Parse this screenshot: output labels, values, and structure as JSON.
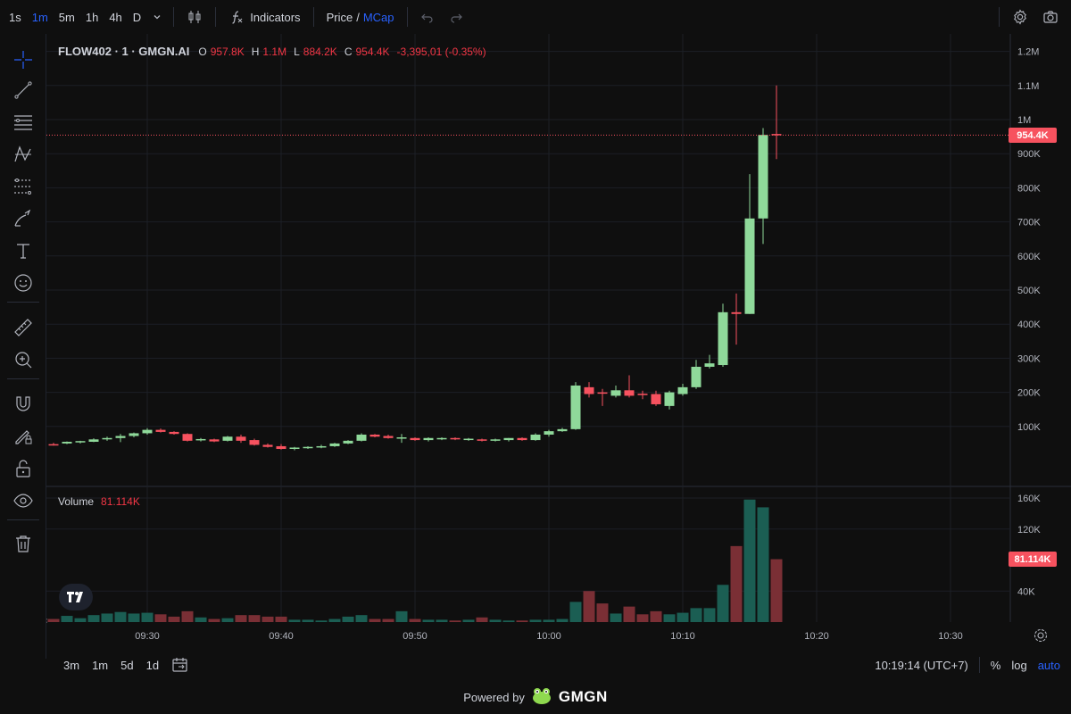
{
  "toolbar": {
    "timeframes": [
      "1s",
      "1m",
      "5m",
      "1h",
      "4h",
      "D"
    ],
    "active_timeframe": "1m",
    "indicators_label": "Indicators",
    "price_label": "Price",
    "separator": "/",
    "mcap_label": "MCap"
  },
  "legend": {
    "symbol": "FLOW402 · 1 · GMGN.AI",
    "open_key": "O",
    "open": "957.8K",
    "high_key": "H",
    "high": "1.1M",
    "low_key": "L",
    "low": "884.2K",
    "close_key": "C",
    "close": "954.4K",
    "change": "-3,395,01 (-0.35%)"
  },
  "volume_legend": {
    "label": "Volume",
    "value": "81.114K"
  },
  "price_axis": [
    "1.2M",
    "1.1M",
    "1M",
    "900K",
    "800K",
    "700K",
    "600K",
    "500K",
    "400K",
    "300K",
    "200K",
    "100K"
  ],
  "price_axis_values": [
    1200000,
    1100000,
    1000000,
    900000,
    800000,
    700000,
    600000,
    500000,
    400000,
    300000,
    200000,
    100000
  ],
  "volume_axis": [
    "160K",
    "120K",
    "40K"
  ],
  "volume_axis_values": [
    160000,
    120000,
    40000
  ],
  "current_price_tag": "954.4K",
  "current_volume_tag": "81.114K",
  "time_axis": [
    "09:30",
    "09:40",
    "09:50",
    "10:00",
    "10:10",
    "10:20",
    "10:30"
  ],
  "bottombar": {
    "ranges": [
      "3m",
      "1m",
      "5d",
      "1d"
    ],
    "clock": "10:19:14 (UTC+7)",
    "percent_label": "%",
    "log_label": "log",
    "auto_label": "auto"
  },
  "footer": {
    "powered_by": "Powered by",
    "brand": "GMGN"
  },
  "colors": {
    "up": "#8fd99a",
    "down": "#f7525f",
    "vol_up": "#1b5e53",
    "vol_down": "#7a2f35",
    "accent": "#2962ff"
  },
  "chart_data": {
    "type": "candlestick",
    "x_label_times": [
      "09:30",
      "09:40",
      "09:50",
      "10:00",
      "10:10",
      "10:20",
      "10:30"
    ],
    "candles": [
      {
        "o": 48000,
        "h": 52000,
        "l": 44000,
        "c": 46000,
        "v": 4000,
        "up": false
      },
      {
        "o": 50000,
        "h": 56000,
        "l": 48000,
        "c": 55000,
        "v": 8000,
        "up": true
      },
      {
        "o": 54000,
        "h": 58000,
        "l": 50000,
        "c": 57000,
        "v": 5000,
        "up": true
      },
      {
        "o": 55000,
        "h": 65000,
        "l": 54000,
        "c": 62000,
        "v": 9000,
        "up": true
      },
      {
        "o": 62000,
        "h": 70000,
        "l": 58000,
        "c": 66000,
        "v": 11000,
        "up": true
      },
      {
        "o": 66000,
        "h": 78000,
        "l": 54000,
        "c": 72000,
        "v": 13000,
        "up": true
      },
      {
        "o": 72000,
        "h": 82000,
        "l": 68000,
        "c": 80000,
        "v": 11000,
        "up": true
      },
      {
        "o": 80000,
        "h": 95000,
        "l": 76000,
        "c": 90000,
        "v": 12000,
        "up": true
      },
      {
        "o": 90000,
        "h": 94000,
        "l": 82000,
        "c": 84000,
        "v": 10000,
        "up": false
      },
      {
        "o": 84000,
        "h": 86000,
        "l": 76000,
        "c": 78000,
        "v": 7000,
        "up": false
      },
      {
        "o": 78000,
        "h": 80000,
        "l": 56000,
        "c": 58000,
        "v": 14000,
        "up": false
      },
      {
        "o": 60000,
        "h": 66000,
        "l": 56000,
        "c": 63000,
        "v": 6000,
        "up": true
      },
      {
        "o": 62000,
        "h": 64000,
        "l": 54000,
        "c": 56000,
        "v": 4000,
        "up": false
      },
      {
        "o": 58000,
        "h": 72000,
        "l": 56000,
        "c": 70000,
        "v": 5000,
        "up": true
      },
      {
        "o": 70000,
        "h": 76000,
        "l": 52000,
        "c": 58000,
        "v": 9000,
        "up": false
      },
      {
        "o": 60000,
        "h": 64000,
        "l": 44000,
        "c": 46000,
        "v": 9000,
        "up": false
      },
      {
        "o": 46000,
        "h": 50000,
        "l": 38000,
        "c": 40000,
        "v": 7000,
        "up": false
      },
      {
        "o": 42000,
        "h": 48000,
        "l": 32000,
        "c": 34000,
        "v": 7000,
        "up": false
      },
      {
        "o": 36000,
        "h": 40000,
        "l": 30000,
        "c": 38000,
        "v": 3000,
        "up": true
      },
      {
        "o": 38000,
        "h": 42000,
        "l": 34000,
        "c": 40000,
        "v": 3000,
        "up": true
      },
      {
        "o": 40000,
        "h": 46000,
        "l": 36000,
        "c": 42000,
        "v": 2000,
        "up": true
      },
      {
        "o": 42000,
        "h": 52000,
        "l": 40000,
        "c": 50000,
        "v": 4000,
        "up": true
      },
      {
        "o": 50000,
        "h": 60000,
        "l": 48000,
        "c": 58000,
        "v": 7000,
        "up": true
      },
      {
        "o": 58000,
        "h": 80000,
        "l": 56000,
        "c": 76000,
        "v": 9000,
        "up": true
      },
      {
        "o": 76000,
        "h": 78000,
        "l": 68000,
        "c": 70000,
        "v": 4000,
        "up": false
      },
      {
        "o": 72000,
        "h": 76000,
        "l": 64000,
        "c": 66000,
        "v": 4000,
        "up": false
      },
      {
        "o": 66000,
        "h": 78000,
        "l": 52000,
        "c": 68000,
        "v": 14000,
        "up": true
      },
      {
        "o": 66000,
        "h": 68000,
        "l": 58000,
        "c": 60000,
        "v": 4000,
        "up": false
      },
      {
        "o": 60000,
        "h": 68000,
        "l": 56000,
        "c": 66000,
        "v": 3000,
        "up": true
      },
      {
        "o": 64000,
        "h": 68000,
        "l": 60000,
        "c": 66000,
        "v": 3000,
        "up": true
      },
      {
        "o": 66000,
        "h": 68000,
        "l": 60000,
        "c": 62000,
        "v": 2000,
        "up": false
      },
      {
        "o": 62000,
        "h": 66000,
        "l": 58000,
        "c": 64000,
        "v": 3000,
        "up": true
      },
      {
        "o": 62000,
        "h": 64000,
        "l": 56000,
        "c": 58000,
        "v": 6000,
        "up": false
      },
      {
        "o": 58000,
        "h": 64000,
        "l": 56000,
        "c": 62000,
        "v": 3000,
        "up": true
      },
      {
        "o": 60000,
        "h": 66000,
        "l": 56000,
        "c": 66000,
        "v": 2000,
        "up": true
      },
      {
        "o": 66000,
        "h": 68000,
        "l": 58000,
        "c": 60000,
        "v": 2000,
        "up": false
      },
      {
        "o": 60000,
        "h": 80000,
        "l": 58000,
        "c": 76000,
        "v": 3000,
        "up": true
      },
      {
        "o": 76000,
        "h": 90000,
        "l": 70000,
        "c": 86000,
        "v": 3000,
        "up": true
      },
      {
        "o": 86000,
        "h": 96000,
        "l": 84000,
        "c": 92000,
        "v": 4000,
        "up": true
      },
      {
        "o": 92000,
        "h": 230000,
        "l": 90000,
        "c": 220000,
        "v": 26000,
        "up": true
      },
      {
        "o": 215000,
        "h": 230000,
        "l": 185000,
        "c": 195000,
        "v": 40000,
        "up": false
      },
      {
        "o": 200000,
        "h": 210000,
        "l": 160000,
        "c": 196000,
        "v": 24000,
        "up": false
      },
      {
        "o": 190000,
        "h": 220000,
        "l": 185000,
        "c": 206000,
        "v": 11000,
        "up": true
      },
      {
        "o": 206000,
        "h": 250000,
        "l": 185000,
        "c": 190000,
        "v": 20000,
        "up": false
      },
      {
        "o": 196000,
        "h": 205000,
        "l": 180000,
        "c": 192000,
        "v": 10000,
        "up": false
      },
      {
        "o": 195000,
        "h": 205000,
        "l": 160000,
        "c": 165000,
        "v": 14000,
        "up": false
      },
      {
        "o": 160000,
        "h": 205000,
        "l": 150000,
        "c": 200000,
        "v": 10000,
        "up": true
      },
      {
        "o": 195000,
        "h": 225000,
        "l": 190000,
        "c": 215000,
        "v": 12000,
        "up": true
      },
      {
        "o": 215000,
        "h": 295000,
        "l": 210000,
        "c": 275000,
        "v": 18000,
        "up": true
      },
      {
        "o": 275000,
        "h": 310000,
        "l": 270000,
        "c": 285000,
        "v": 18000,
        "up": true
      },
      {
        "o": 280000,
        "h": 460000,
        "l": 275000,
        "c": 435000,
        "v": 48000,
        "up": true
      },
      {
        "o": 435000,
        "h": 490000,
        "l": 340000,
        "c": 430000,
        "v": 98000,
        "up": false
      },
      {
        "o": 430000,
        "h": 840000,
        "l": 430000,
        "c": 710000,
        "v": 158000,
        "up": true
      },
      {
        "o": 710000,
        "h": 975000,
        "l": 635000,
        "c": 955000,
        "v": 148000,
        "up": true
      },
      {
        "o": 957800,
        "h": 1100000,
        "l": 884200,
        "c": 954400,
        "v": 81114,
        "up": false
      }
    ]
  }
}
